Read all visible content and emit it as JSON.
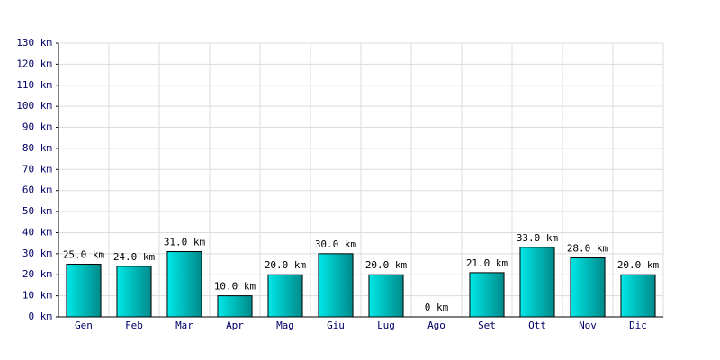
{
  "chart_data": {
    "type": "bar",
    "categories": [
      "Gen",
      "Feb",
      "Mar",
      "Apr",
      "Mag",
      "Giu",
      "Lug",
      "Ago",
      "Set",
      "Ott",
      "Nov",
      "Dic"
    ],
    "values": [
      25,
      24,
      31,
      10,
      20,
      30,
      20,
      0,
      21,
      33,
      28,
      20
    ],
    "value_labels": [
      "25.0 km",
      "24.0 km",
      "31.0 km",
      "10.0 km",
      "20.0 km",
      "30.0 km",
      "20.0 km",
      "0 km",
      "21.0 km",
      "33.0 km",
      "28.0 km",
      "20.0 km"
    ],
    "color": "#00cccc",
    "ylim": [
      0,
      130
    ],
    "yticks": [
      {
        "value": 0,
        "label": "0 km"
      },
      {
        "value": 10,
        "label": "10 km"
      },
      {
        "value": 20,
        "label": "20 km"
      },
      {
        "value": 30,
        "label": "30 km"
      },
      {
        "value": 40,
        "label": "40 km"
      },
      {
        "value": 50,
        "label": "50 km"
      },
      {
        "value": 60,
        "label": "60 km"
      },
      {
        "value": 70,
        "label": "70 km"
      },
      {
        "value": 80,
        "label": "80 km"
      },
      {
        "value": 90,
        "label": "90 km"
      },
      {
        "value": 100,
        "label": "100 km"
      },
      {
        "value": 110,
        "label": "110 km"
      },
      {
        "value": 120,
        "label": "120 km"
      },
      {
        "value": 130,
        "label": "130 km"
      }
    ],
    "grid": true
  }
}
